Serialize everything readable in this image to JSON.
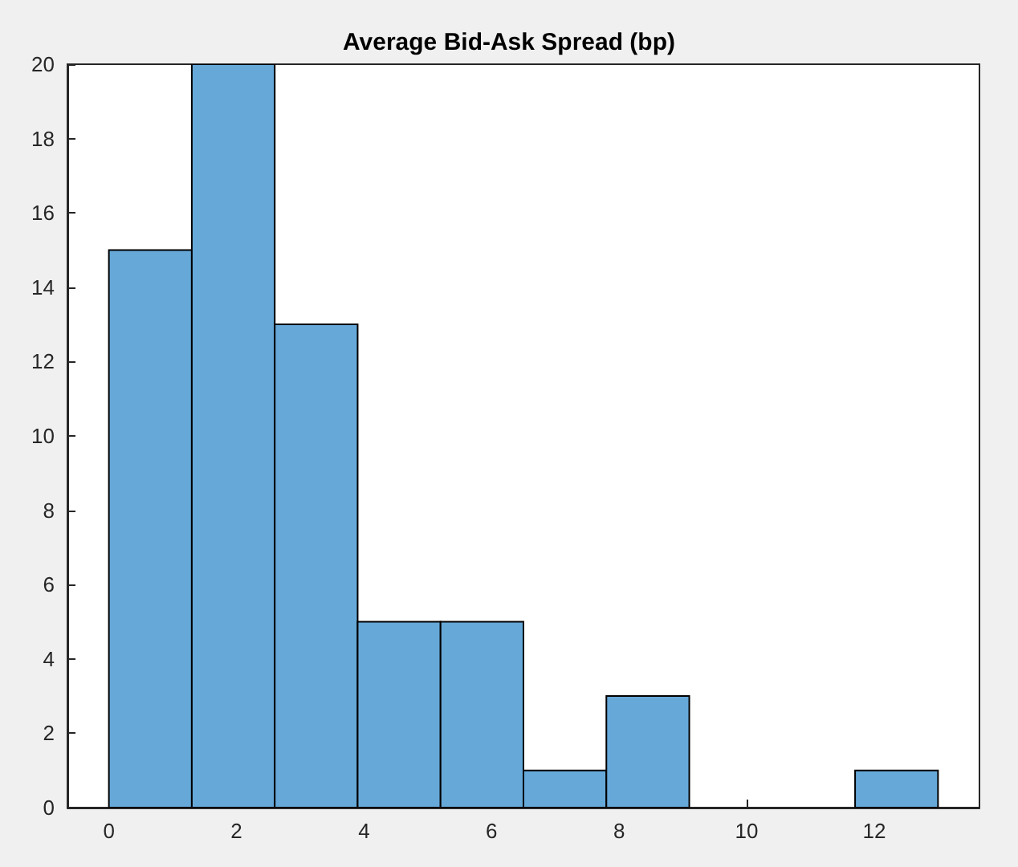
{
  "chart_data": {
    "type": "histogram",
    "title": "Average Bid-Ask Spread (bp)",
    "bins": [
      0,
      1.3,
      2.6,
      3.9,
      5.2,
      6.5,
      7.8,
      9.1,
      10.4,
      11.7,
      13
    ],
    "values": [
      15,
      20,
      13,
      5,
      5,
      1,
      3,
      0,
      0,
      1
    ],
    "color": "#66a9d9",
    "xlim": [
      -0.65,
      13.65
    ],
    "xticks": [
      0,
      2,
      4,
      6,
      8,
      10,
      12
    ],
    "ylim": [
      0,
      20
    ],
    "yticks": [
      0,
      2,
      4,
      6,
      8,
      10,
      12,
      14,
      16,
      18,
      20
    ],
    "grid": false
  }
}
